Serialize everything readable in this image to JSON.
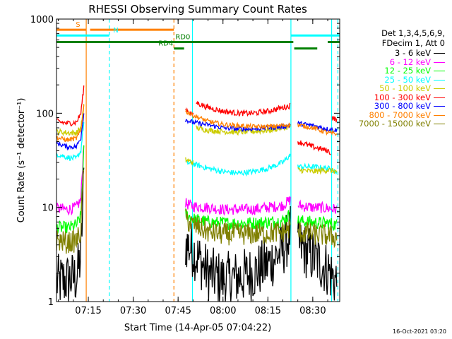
{
  "chart_data": {
    "type": "line",
    "title": "RHESSI Observing Summary Count Rates",
    "xlabel": "Start Time (14-Apr-05 07:04:22)",
    "ylabel": "Count Rate (s⁻¹ detector⁻¹)",
    "x_tick_labels": [
      "07:15",
      "07:30",
      "07:45",
      "08:00",
      "08:15",
      "08:30"
    ],
    "x_tick_minutes": [
      15,
      30,
      45,
      60,
      75,
      90
    ],
    "xlim_minutes": [
      4.37,
      99
    ],
    "y_scale": "log",
    "ylim": [
      1,
      1000
    ],
    "y_tick_labels": [
      "1",
      "10",
      "100",
      "1000"
    ],
    "legend_header": [
      "Det 1,3,4,5,6,9,",
      "FDecim 1, Att 0"
    ],
    "series": [
      {
        "name": "3 - 6 keV",
        "color": "#000000",
        "segments": [
          [
            [
              4.4,
              1.6
            ],
            [
              8,
              1.7
            ],
            [
              11,
              1.8
            ],
            [
              12.5,
              3
            ],
            [
              13.5,
              20
            ]
          ],
          [
            [
              47.5,
              4.2
            ],
            [
              50,
              3.5
            ],
            [
              55,
              2.0
            ],
            [
              60,
              1.7
            ],
            [
              65,
              1.8
            ],
            [
              70,
              2.0
            ],
            [
              75,
              2.5
            ],
            [
              80,
              3.5
            ],
            [
              82.5,
              5.5
            ]
          ],
          [
            [
              85,
              4.0
            ],
            [
              90,
              3.0
            ],
            [
              95,
              2.2
            ],
            [
              98,
              1.6
            ]
          ]
        ]
      },
      {
        "name": "6 - 12 keV",
        "color": "#ff00ff",
        "segments": [
          [
            [
              4.4,
              9.8
            ],
            [
              8,
              9.5
            ],
            [
              11,
              10
            ],
            [
              12.5,
              12
            ],
            [
              13.5,
              50
            ]
          ],
          [
            [
              47.5,
              11
            ],
            [
              50,
              10.3
            ],
            [
              55,
              10
            ],
            [
              60,
              9.5
            ],
            [
              65,
              9.5
            ],
            [
              70,
              9.5
            ],
            [
              75,
              10
            ],
            [
              80,
              10.5
            ],
            [
              82.5,
              12
            ]
          ],
          [
            [
              85,
              10.5
            ],
            [
              90,
              10
            ],
            [
              95,
              9.8
            ],
            [
              98,
              9.5
            ]
          ]
        ]
      },
      {
        "name": "12 - 25 keV",
        "color": "#00ff00",
        "segments": [
          [
            [
              4.4,
              6.2
            ],
            [
              8,
              6.0
            ],
            [
              11,
              6.5
            ],
            [
              12.5,
              8
            ],
            [
              13.5,
              40
            ]
          ],
          [
            [
              47.5,
              8.5
            ],
            [
              50,
              7.5
            ],
            [
              55,
              7.0
            ],
            [
              60,
              6.8
            ],
            [
              65,
              6.8
            ],
            [
              70,
              6.8
            ],
            [
              75,
              7.0
            ],
            [
              80,
              7.2
            ],
            [
              82.5,
              8.5
            ]
          ],
          [
            [
              85,
              7.2
            ],
            [
              90,
              6.9
            ],
            [
              95,
              6.8
            ],
            [
              98,
              6.5
            ]
          ]
        ]
      },
      {
        "name": "25 - 50 keV",
        "color": "#00ffff",
        "segments": [
          [
            [
              4.4,
              37
            ],
            [
              8,
              34
            ],
            [
              11,
              33
            ],
            [
              12.5,
              40
            ],
            [
              13.5,
              80
            ]
          ],
          [
            [
              47.5,
              30
            ],
            [
              50,
              29
            ],
            [
              55,
              26
            ],
            [
              60,
              24
            ],
            [
              65,
              23
            ],
            [
              70,
              24
            ],
            [
              75,
              26
            ],
            [
              80,
              30
            ],
            [
              82.5,
              36
            ]
          ],
          [
            [
              85,
              27
            ],
            [
              90,
              27
            ],
            [
              95,
              26
            ],
            [
              98,
              24
            ]
          ]
        ]
      },
      {
        "name": "50 - 100 keV",
        "color": "#cccc00",
        "segments": [
          [
            [
              4.4,
              64
            ],
            [
              8,
              62
            ],
            [
              11,
              62
            ],
            [
              12.5,
              70
            ],
            [
              13.5,
              120
            ]
          ],
          [
            [
              47.5,
              32
            ],
            [
              50,
              30
            ]
          ],
          [
            [
              51,
              70
            ],
            [
              55,
              66
            ],
            [
              60,
              64
            ],
            [
              65,
              63
            ],
            [
              70,
              64
            ],
            [
              75,
              66
            ],
            [
              80,
              70
            ],
            [
              82.5,
              72
            ]
          ],
          [
            [
              85,
              25
            ],
            [
              90,
              24
            ],
            [
              95,
              25
            ],
            [
              98,
              24
            ]
          ]
        ]
      },
      {
        "name": "100 - 300 keV",
        "color": "#ff0000",
        "segments": [
          [
            [
              4.4,
              82
            ],
            [
              8,
              78
            ],
            [
              11,
              80
            ],
            [
              12.5,
              100
            ],
            [
              13.5,
              190
            ]
          ],
          [
            [
              47.5,
              110
            ],
            [
              50,
              95
            ]
          ],
          [
            [
              51,
              130
            ],
            [
              55,
              115
            ],
            [
              60,
              105
            ],
            [
              65,
              100
            ],
            [
              70,
              100
            ],
            [
              75,
              105
            ],
            [
              80,
              115
            ],
            [
              82.5,
              120
            ]
          ],
          [
            [
              85,
              50
            ],
            [
              90,
              44
            ],
            [
              95,
              40
            ],
            [
              96,
              38
            ]
          ],
          [
            [
              96.5,
              90
            ],
            [
              98,
              85
            ]
          ]
        ]
      },
      {
        "name": "300 - 800 keV",
        "color": "#0000ff",
        "segments": [
          [
            [
              4.4,
              48
            ],
            [
              8,
              44
            ],
            [
              11,
              44
            ],
            [
              12.5,
              55
            ],
            [
              13.5,
              100
            ]
          ],
          [
            [
              47.5,
              85
            ],
            [
              50,
              80
            ],
            [
              55,
              75
            ],
            [
              60,
              70
            ],
            [
              65,
              68
            ],
            [
              70,
              68
            ],
            [
              75,
              70
            ],
            [
              80,
              72
            ],
            [
              82.5,
              75
            ]
          ],
          [
            [
              85,
              78
            ],
            [
              90,
              74
            ],
            [
              95,
              68
            ],
            [
              98,
              66
            ]
          ]
        ]
      },
      {
        "name": "800 - 7000 keV",
        "color": "#ff8000",
        "segments": [
          [
            [
              4.4,
              55
            ],
            [
              8,
              52
            ],
            [
              11,
              54
            ],
            [
              12.5,
              65
            ],
            [
              13.5,
              120
            ]
          ],
          [
            [
              47.5,
              105
            ],
            [
              50,
              95
            ],
            [
              55,
              82
            ],
            [
              60,
              76
            ],
            [
              65,
              74
            ],
            [
              70,
              72
            ],
            [
              75,
              72
            ],
            [
              80,
              74
            ],
            [
              82.5,
              76
            ]
          ],
          [
            [
              85,
              75
            ],
            [
              90,
              70
            ],
            [
              95,
              62
            ],
            [
              98,
              60
            ]
          ]
        ]
      },
      {
        "name": "7000 - 15000 keV",
        "color": "#808000",
        "segments": [
          [
            [
              4.4,
              4.5
            ],
            [
              8,
              4.2
            ],
            [
              11,
              4.4
            ],
            [
              12.5,
              5.5
            ],
            [
              13.5,
              30
            ]
          ],
          [
            [
              47.5,
              7.5
            ],
            [
              50,
              6.5
            ],
            [
              55,
              5.5
            ],
            [
              60,
              5.2
            ],
            [
              65,
              5.2
            ],
            [
              70,
              5.2
            ],
            [
              75,
              5.3
            ],
            [
              80,
              5.5
            ],
            [
              82.5,
              6
            ]
          ],
          [
            [
              85,
              5.5
            ],
            [
              90,
              5.2
            ],
            [
              95,
              5.0
            ],
            [
              98,
              4.8
            ]
          ]
        ]
      }
    ],
    "vertical_lines": [
      {
        "minute": 14.3,
        "color": "#ff8000",
        "style": "solid"
      },
      {
        "minute": 22.0,
        "color": "#00ffff",
        "style": "dashed"
      },
      {
        "minute": 43.6,
        "color": "#ff8000",
        "style": "dashed"
      },
      {
        "minute": 49.8,
        "color": "#00ffff",
        "style": "solid"
      },
      {
        "minute": 82.7,
        "color": "#00ffff",
        "style": "solid"
      },
      {
        "minute": 96.3,
        "color": "#00ffff",
        "style": "solid"
      },
      {
        "minute": 98.4,
        "color": "#00ffff",
        "style": "dashed"
      }
    ],
    "flag_bars": [
      {
        "label": "S",
        "color": "#ff8000",
        "y_value": 770,
        "ranges": [
          [
            4.4,
            14.3
          ],
          [
            15.6,
            43.6
          ]
        ],
        "label_minute": 10.8
      },
      {
        "label": "N",
        "color": "#00ffff",
        "y_value": 670,
        "ranges": [
          [
            4.4,
            22.0
          ],
          [
            82.7,
            99
          ]
        ],
        "label_minute": 23.3
      },
      {
        "label": "RD0",
        "color": "#008000",
        "y_value": 570,
        "ranges": [
          [
            4.4,
            83.5
          ],
          [
            95.0,
            99
          ]
        ],
        "label_minute": 44.1
      },
      {
        "label": "RD4",
        "color": "#008000",
        "y_value": 487,
        "ranges": [
          [
            43.6,
            47.0
          ],
          [
            83.8,
            91.5
          ]
        ],
        "label_minute": 38.4
      }
    ]
  },
  "footer": {
    "timestamp": "16-Oct-2021 03:20"
  }
}
